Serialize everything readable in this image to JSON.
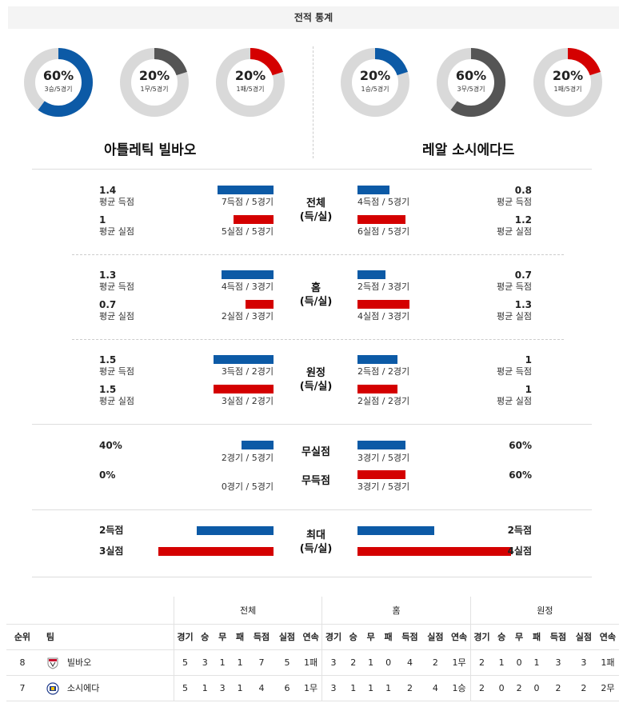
{
  "title": "전적 통계",
  "home_team": {
    "name": "아틀레틱 빌바오",
    "short": "빌바오",
    "donuts": [
      {
        "pct_text": "60%",
        "record": "3승/5경기",
        "value": 0.6,
        "color": "#0c5aa6"
      },
      {
        "pct_text": "20%",
        "record": "1무/5경기",
        "value": 0.2,
        "color": "#555555"
      },
      {
        "pct_text": "20%",
        "record": "1패/5경기",
        "value": 0.2,
        "color": "#d40000"
      }
    ]
  },
  "away_team": {
    "name": "레알 소시에다드",
    "short": "소시에다",
    "donuts": [
      {
        "pct_text": "20%",
        "record": "1승/5경기",
        "value": 0.2,
        "color": "#0c5aa6"
      },
      {
        "pct_text": "60%",
        "record": "3무/5경기",
        "value": 0.6,
        "color": "#555555"
      },
      {
        "pct_text": "20%",
        "record": "1패/5경기",
        "value": 0.2,
        "color": "#d40000"
      }
    ]
  },
  "sections": [
    {
      "cat1": "전체",
      "cat2": "(득/실)",
      "home": {
        "score_val": "1.4",
        "score_lab": "평균 득점",
        "score_cap": "7득점 / 5경기",
        "score_frac": 0.7,
        "concede_val": "1",
        "concede_lab": "평균 실점",
        "concede_cap": "5실점 / 5경기",
        "concede_frac": 0.5
      },
      "away": {
        "score_val": "0.8",
        "score_lab": "평균 득점",
        "score_cap": "4득점 / 5경기",
        "score_frac": 0.4,
        "concede_val": "1.2",
        "concede_lab": "평균 실점",
        "concede_cap": "6실점 / 5경기",
        "concede_frac": 0.6
      }
    },
    {
      "cat1": "홈",
      "cat2": "(득/실)",
      "home": {
        "score_val": "1.3",
        "score_lab": "평균 득점",
        "score_cap": "4득점 / 3경기",
        "score_frac": 0.65,
        "concede_val": "0.7",
        "concede_lab": "평균 실점",
        "concede_cap": "2실점 / 3경기",
        "concede_frac": 0.35
      },
      "away": {
        "score_val": "0.7",
        "score_lab": "평균 득점",
        "score_cap": "2득점 / 3경기",
        "score_frac": 0.35,
        "concede_val": "1.3",
        "concede_lab": "평균 실점",
        "concede_cap": "4실점 / 3경기",
        "concede_frac": 0.65
      }
    },
    {
      "cat1": "원정",
      "cat2": "(득/실)",
      "home": {
        "score_val": "1.5",
        "score_lab": "평균 득점",
        "score_cap": "3득점 / 2경기",
        "score_frac": 0.75,
        "concede_val": "1.5",
        "concede_lab": "평균 실점",
        "concede_cap": "3실점 / 2경기",
        "concede_frac": 0.75
      },
      "away": {
        "score_val": "1",
        "score_lab": "평균 득점",
        "score_cap": "2득점 / 2경기",
        "score_frac": 0.5,
        "concede_val": "1",
        "concede_lab": "평균 실점",
        "concede_cap": "2실점 / 2경기",
        "concede_frac": 0.5
      }
    }
  ],
  "clean": {
    "cat_a": "무실점",
    "cat_b": "무득점",
    "home": {
      "a_val": "40%",
      "a_cap": "2경기 / 5경기",
      "a_frac": 0.4,
      "b_val": "0%",
      "b_cap": "0경기 / 5경기",
      "b_frac": 0
    },
    "away": {
      "a_val": "60%",
      "a_cap": "3경기 / 5경기",
      "a_frac": 0.6,
      "b_val": "60%",
      "b_cap": "3경기 / 5경기",
      "b_frac": 0.6
    }
  },
  "max": {
    "cat1": "최대",
    "cat2": "(득/실)",
    "home": {
      "score": "2득점",
      "score_frac": 0.5,
      "concede": "3실점",
      "concede_frac": 0.75
    },
    "away": {
      "score": "2득점",
      "score_frac": 0.5,
      "concede": "4실점",
      "concede_frac": 1.0
    }
  },
  "standings": {
    "groups": [
      "전체",
      "홈",
      "원정"
    ],
    "col_rank": "순위",
    "col_team": "팀",
    "cols": [
      "경기",
      "승",
      "무",
      "패",
      "득점",
      "실점",
      "연속"
    ],
    "rows": [
      {
        "rank": "8",
        "team": "빌바오",
        "total": [
          "5",
          "3",
          "1",
          "1",
          "7",
          "5",
          "1패"
        ],
        "home": [
          "3",
          "2",
          "1",
          "0",
          "4",
          "2",
          "1무"
        ],
        "away": [
          "2",
          "1",
          "0",
          "1",
          "3",
          "3",
          "1패"
        ]
      },
      {
        "rank": "7",
        "team": "소시에다",
        "total": [
          "5",
          "1",
          "3",
          "1",
          "4",
          "6",
          "1무"
        ],
        "home": [
          "3",
          "1",
          "1",
          "1",
          "2",
          "4",
          "1승"
        ],
        "away": [
          "2",
          "0",
          "2",
          "0",
          "2",
          "2",
          "2무"
        ]
      }
    ]
  }
}
